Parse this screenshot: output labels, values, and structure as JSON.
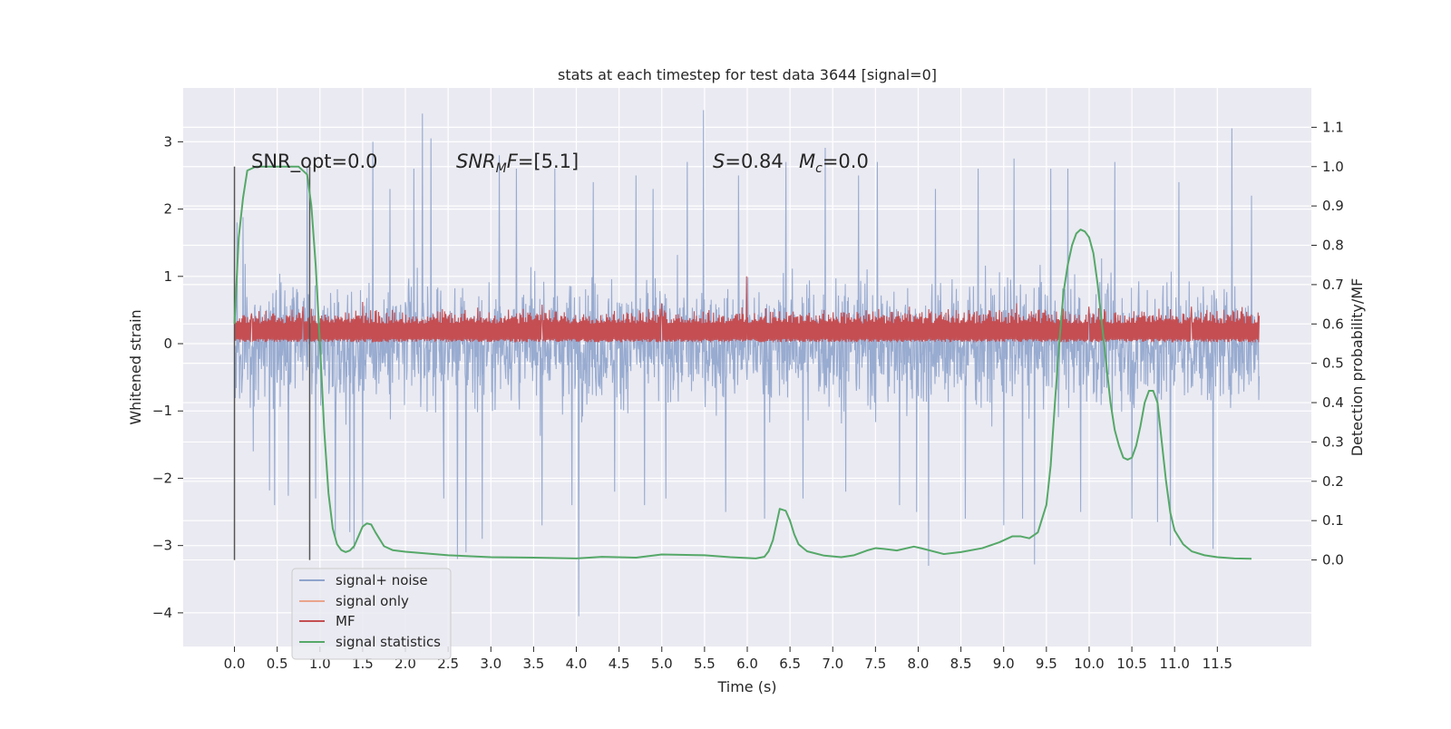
{
  "chart_data": {
    "type": "line",
    "title": "stats at each timestep for test data 3644 [signal=0]",
    "xlabel": "Time (s)",
    "ylabel": "Whitened strain",
    "y2label": "Detection probability/MF",
    "xlim": [
      -0.6,
      12.6
    ],
    "ylim": [
      -4.5,
      3.8
    ],
    "y2lim": [
      -0.22,
      1.2
    ],
    "x_ticks": [
      0.0,
      0.5,
      1.0,
      1.5,
      2.0,
      2.5,
      3.0,
      3.5,
      4.0,
      4.5,
      5.0,
      5.5,
      6.0,
      6.5,
      7.0,
      7.5,
      8.0,
      8.5,
      9.0,
      9.5,
      10.0,
      10.5,
      11.0,
      11.5
    ],
    "x_tick_labels": [
      "0.0",
      "0.5",
      "1.0",
      "1.5",
      "2.0",
      "2.5",
      "3.0",
      "3.5",
      "4.0",
      "4.5",
      "5.0",
      "5.5",
      "6.0",
      "6.5",
      "7.0",
      "7.5",
      "8.0",
      "8.5",
      "9.0",
      "9.5",
      "10.0",
      "10.5",
      "11.0",
      "11.5"
    ],
    "y_ticks": [
      3,
      2,
      1,
      0,
      -1,
      -2,
      -3,
      -4
    ],
    "y_tick_labels": [
      "3",
      "2",
      "1",
      "0",
      "−1",
      "−2",
      "−3",
      "−4"
    ],
    "y2_ticks": [
      1.1,
      1.0,
      0.9,
      0.8,
      0.7,
      0.6,
      0.5,
      0.4,
      0.3,
      0.2,
      0.1,
      0.0
    ],
    "y2_tick_labels": [
      "1.1",
      "1.0",
      "0.9",
      "0.8",
      "0.7",
      "0.6",
      "0.5",
      "0.4",
      "0.3",
      "0.2",
      "0.1",
      "0.0"
    ],
    "grid": true,
    "legend_position": "lower-left",
    "series": [
      {
        "name": "signal+ noise",
        "color": "#8fa4cc",
        "axis": "left",
        "x_range": [
          0.0,
          11.99
        ],
        "typical_range": [
          -1.5,
          1.5
        ],
        "samples": [
          {
            "x": 0.03,
            "y": 1.8
          },
          {
            "x": 0.1,
            "y": 1.88
          },
          {
            "x": 0.22,
            "y": -1.6
          },
          {
            "x": 0.41,
            "y": -2.18
          },
          {
            "x": 0.47,
            "y": -2.4
          },
          {
            "x": 0.63,
            "y": -2.26
          },
          {
            "x": 0.85,
            "y": 2.62
          },
          {
            "x": 0.95,
            "y": -2.3
          },
          {
            "x": 1.18,
            "y": -2.9
          },
          {
            "x": 1.35,
            "y": -2.8
          },
          {
            "x": 1.4,
            "y": -3.05
          },
          {
            "x": 1.5,
            "y": -2.7
          },
          {
            "x": 1.62,
            "y": 3.0
          },
          {
            "x": 1.82,
            "y": 2.3
          },
          {
            "x": 2.1,
            "y": 2.6
          },
          {
            "x": 2.2,
            "y": 3.42
          },
          {
            "x": 2.3,
            "y": 3.05
          },
          {
            "x": 2.45,
            "y": -2.3
          },
          {
            "x": 2.61,
            "y": -3.2
          },
          {
            "x": 2.71,
            "y": -3.1
          },
          {
            "x": 2.9,
            "y": -2.9
          },
          {
            "x": 3.1,
            "y": 2.8
          },
          {
            "x": 3.3,
            "y": 2.6
          },
          {
            "x": 3.6,
            "y": -2.7
          },
          {
            "x": 3.75,
            "y": 2.6
          },
          {
            "x": 3.95,
            "y": -2.4
          },
          {
            "x": 4.03,
            "y": -4.05
          },
          {
            "x": 4.2,
            "y": 2.4
          },
          {
            "x": 4.45,
            "y": -2.2
          },
          {
            "x": 4.7,
            "y": 2.5
          },
          {
            "x": 4.8,
            "y": -2.4
          },
          {
            "x": 4.9,
            "y": 2.3
          },
          {
            "x": 5.05,
            "y": -2.3
          },
          {
            "x": 5.3,
            "y": 2.7
          },
          {
            "x": 5.49,
            "y": 3.47
          },
          {
            "x": 5.75,
            "y": -2.5
          },
          {
            "x": 5.9,
            "y": 2.5
          },
          {
            "x": 6.2,
            "y": -2.6
          },
          {
            "x": 6.45,
            "y": 2.7
          },
          {
            "x": 6.65,
            "y": -2.3
          },
          {
            "x": 6.91,
            "y": 2.91
          },
          {
            "x": 7.15,
            "y": -2.2
          },
          {
            "x": 7.3,
            "y": 2.5
          },
          {
            "x": 7.52,
            "y": 2.7
          },
          {
            "x": 7.78,
            "y": -2.4
          },
          {
            "x": 7.98,
            "y": -2.5
          },
          {
            "x": 8.12,
            "y": -3.3
          },
          {
            "x": 8.2,
            "y": 2.3
          },
          {
            "x": 8.55,
            "y": -2.6
          },
          {
            "x": 8.7,
            "y": 2.6
          },
          {
            "x": 9.0,
            "y": -2.7
          },
          {
            "x": 9.12,
            "y": 2.75
          },
          {
            "x": 9.22,
            "y": -2.6
          },
          {
            "x": 9.36,
            "y": -3.28
          },
          {
            "x": 9.55,
            "y": 2.6
          },
          {
            "x": 9.75,
            "y": 2.6
          },
          {
            "x": 9.9,
            "y": -2.5
          },
          {
            "x": 10.3,
            "y": 2.7
          },
          {
            "x": 10.5,
            "y": -2.6
          },
          {
            "x": 10.8,
            "y": -2.65
          },
          {
            "x": 10.95,
            "y": -3.0
          },
          {
            "x": 11.05,
            "y": 2.4
          },
          {
            "x": 11.45,
            "y": -3.05
          },
          {
            "x": 11.67,
            "y": 3.2
          },
          {
            "x": 11.9,
            "y": 2.2
          }
        ]
      },
      {
        "name": "signal only",
        "color": "#eaa58c",
        "axis": "left",
        "points": []
      },
      {
        "name": "MF",
        "color": "#c44e52",
        "axis": "left",
        "x_range": [
          0.0,
          11.99
        ],
        "baseline": 0.02,
        "typical_peak": [
          0.3,
          0.55
        ],
        "samples": [
          {
            "x": 0.2,
            "y": 0.45
          },
          {
            "x": 0.8,
            "y": 0.55
          },
          {
            "x": 1.5,
            "y": 0.62
          },
          {
            "x": 2.7,
            "y": 0.5
          },
          {
            "x": 3.6,
            "y": 0.58
          },
          {
            "x": 5.0,
            "y": 0.6
          },
          {
            "x": 5.99,
            "y": 1.0
          },
          {
            "x": 6.9,
            "y": 0.5
          },
          {
            "x": 7.9,
            "y": 0.55
          },
          {
            "x": 9.15,
            "y": 0.6
          },
          {
            "x": 10.0,
            "y": 0.55
          },
          {
            "x": 11.2,
            "y": 0.55
          }
        ]
      },
      {
        "name": "signal statistics",
        "color": "#55a868",
        "axis": "right",
        "points": [
          {
            "x": 0.0,
            "y": 0.6
          },
          {
            "x": 0.05,
            "y": 0.82
          },
          {
            "x": 0.1,
            "y": 0.92
          },
          {
            "x": 0.15,
            "y": 0.99
          },
          {
            "x": 0.25,
            "y": 1.0
          },
          {
            "x": 0.5,
            "y": 1.0
          },
          {
            "x": 0.75,
            "y": 1.0
          },
          {
            "x": 0.85,
            "y": 0.98
          },
          {
            "x": 0.9,
            "y": 0.9
          },
          {
            "x": 0.95,
            "y": 0.75
          },
          {
            "x": 1.0,
            "y": 0.55
          },
          {
            "x": 1.05,
            "y": 0.33
          },
          {
            "x": 1.1,
            "y": 0.17
          },
          {
            "x": 1.15,
            "y": 0.08
          },
          {
            "x": 1.2,
            "y": 0.04
          },
          {
            "x": 1.25,
            "y": 0.025
          },
          {
            "x": 1.3,
            "y": 0.02
          },
          {
            "x": 1.35,
            "y": 0.024
          },
          {
            "x": 1.4,
            "y": 0.035
          },
          {
            "x": 1.45,
            "y": 0.06
          },
          {
            "x": 1.5,
            "y": 0.085
          },
          {
            "x": 1.55,
            "y": 0.093
          },
          {
            "x": 1.6,
            "y": 0.09
          },
          {
            "x": 1.65,
            "y": 0.07
          },
          {
            "x": 1.75,
            "y": 0.035
          },
          {
            "x": 1.85,
            "y": 0.025
          },
          {
            "x": 2.0,
            "y": 0.021
          },
          {
            "x": 2.5,
            "y": 0.012
          },
          {
            "x": 3.0,
            "y": 0.007
          },
          {
            "x": 3.5,
            "y": 0.006
          },
          {
            "x": 4.0,
            "y": 0.004
          },
          {
            "x": 4.3,
            "y": 0.008
          },
          {
            "x": 4.7,
            "y": 0.006
          },
          {
            "x": 5.0,
            "y": 0.014
          },
          {
            "x": 5.5,
            "y": 0.012
          },
          {
            "x": 5.8,
            "y": 0.007
          },
          {
            "x": 6.1,
            "y": 0.004
          },
          {
            "x": 6.2,
            "y": 0.008
          },
          {
            "x": 6.25,
            "y": 0.022
          },
          {
            "x": 6.3,
            "y": 0.05
          },
          {
            "x": 6.35,
            "y": 0.1
          },
          {
            "x": 6.38,
            "y": 0.13
          },
          {
            "x": 6.45,
            "y": 0.125
          },
          {
            "x": 6.5,
            "y": 0.1
          },
          {
            "x": 6.55,
            "y": 0.065
          },
          {
            "x": 6.6,
            "y": 0.04
          },
          {
            "x": 6.7,
            "y": 0.022
          },
          {
            "x": 6.9,
            "y": 0.011
          },
          {
            "x": 7.1,
            "y": 0.007
          },
          {
            "x": 7.25,
            "y": 0.012
          },
          {
            "x": 7.4,
            "y": 0.024
          },
          {
            "x": 7.5,
            "y": 0.03
          },
          {
            "x": 7.6,
            "y": 0.028
          },
          {
            "x": 7.75,
            "y": 0.024
          },
          {
            "x": 7.95,
            "y": 0.034
          },
          {
            "x": 8.05,
            "y": 0.029
          },
          {
            "x": 8.3,
            "y": 0.015
          },
          {
            "x": 8.5,
            "y": 0.02
          },
          {
            "x": 8.75,
            "y": 0.03
          },
          {
            "x": 8.95,
            "y": 0.045
          },
          {
            "x": 9.1,
            "y": 0.06
          },
          {
            "x": 9.2,
            "y": 0.06
          },
          {
            "x": 9.3,
            "y": 0.055
          },
          {
            "x": 9.4,
            "y": 0.07
          },
          {
            "x": 9.5,
            "y": 0.14
          },
          {
            "x": 9.55,
            "y": 0.24
          },
          {
            "x": 9.6,
            "y": 0.4
          },
          {
            "x": 9.65,
            "y": 0.55
          },
          {
            "x": 9.7,
            "y": 0.68
          },
          {
            "x": 9.75,
            "y": 0.75
          },
          {
            "x": 9.8,
            "y": 0.8
          },
          {
            "x": 9.85,
            "y": 0.83
          },
          {
            "x": 9.9,
            "y": 0.84
          },
          {
            "x": 9.95,
            "y": 0.835
          },
          {
            "x": 10.0,
            "y": 0.82
          },
          {
            "x": 10.05,
            "y": 0.78
          },
          {
            "x": 10.1,
            "y": 0.7
          },
          {
            "x": 10.15,
            "y": 0.6
          },
          {
            "x": 10.2,
            "y": 0.5
          },
          {
            "x": 10.25,
            "y": 0.4
          },
          {
            "x": 10.3,
            "y": 0.33
          },
          {
            "x": 10.35,
            "y": 0.29
          },
          {
            "x": 10.4,
            "y": 0.26
          },
          {
            "x": 10.45,
            "y": 0.255
          },
          {
            "x": 10.5,
            "y": 0.26
          },
          {
            "x": 10.55,
            "y": 0.29
          },
          {
            "x": 10.6,
            "y": 0.34
          },
          {
            "x": 10.65,
            "y": 0.4
          },
          {
            "x": 10.7,
            "y": 0.43
          },
          {
            "x": 10.75,
            "y": 0.43
          },
          {
            "x": 10.8,
            "y": 0.4
          },
          {
            "x": 10.85,
            "y": 0.3
          },
          {
            "x": 10.9,
            "y": 0.2
          },
          {
            "x": 10.95,
            "y": 0.12
          },
          {
            "x": 11.0,
            "y": 0.075
          },
          {
            "x": 11.1,
            "y": 0.04
          },
          {
            "x": 11.2,
            "y": 0.022
          },
          {
            "x": 11.35,
            "y": 0.012
          },
          {
            "x": 11.5,
            "y": 0.007
          },
          {
            "x": 11.7,
            "y": 0.004
          },
          {
            "x": 11.9,
            "y": 0.003
          }
        ]
      }
    ],
    "reference_lines": [
      {
        "x": 0.0,
        "color": "#555555"
      },
      {
        "x": 0.88,
        "color": "#555555"
      }
    ],
    "annotations": [
      {
        "text": "SNR_opt=0.0",
        "x": 0.2,
        "y": 2.75
      },
      {
        "text": "SNR_MF=[5.1]",
        "x": 2.6,
        "y": 2.75
      },
      {
        "text": "S=0.84   M_c=0.0",
        "x": 5.6,
        "y": 2.75
      }
    ],
    "annotation_parts": {
      "snr_opt": "SNR_opt=0.0",
      "snr_mf_base": "SNR",
      "snr_mf_sub": "M",
      "snr_mf_rest": "F",
      "snr_mf_value": "=[5.1]",
      "s_var": "S",
      "s_value": "=0.84",
      "mc_var": "M",
      "mc_sub": "c",
      "mc_value": "=0.0"
    }
  }
}
